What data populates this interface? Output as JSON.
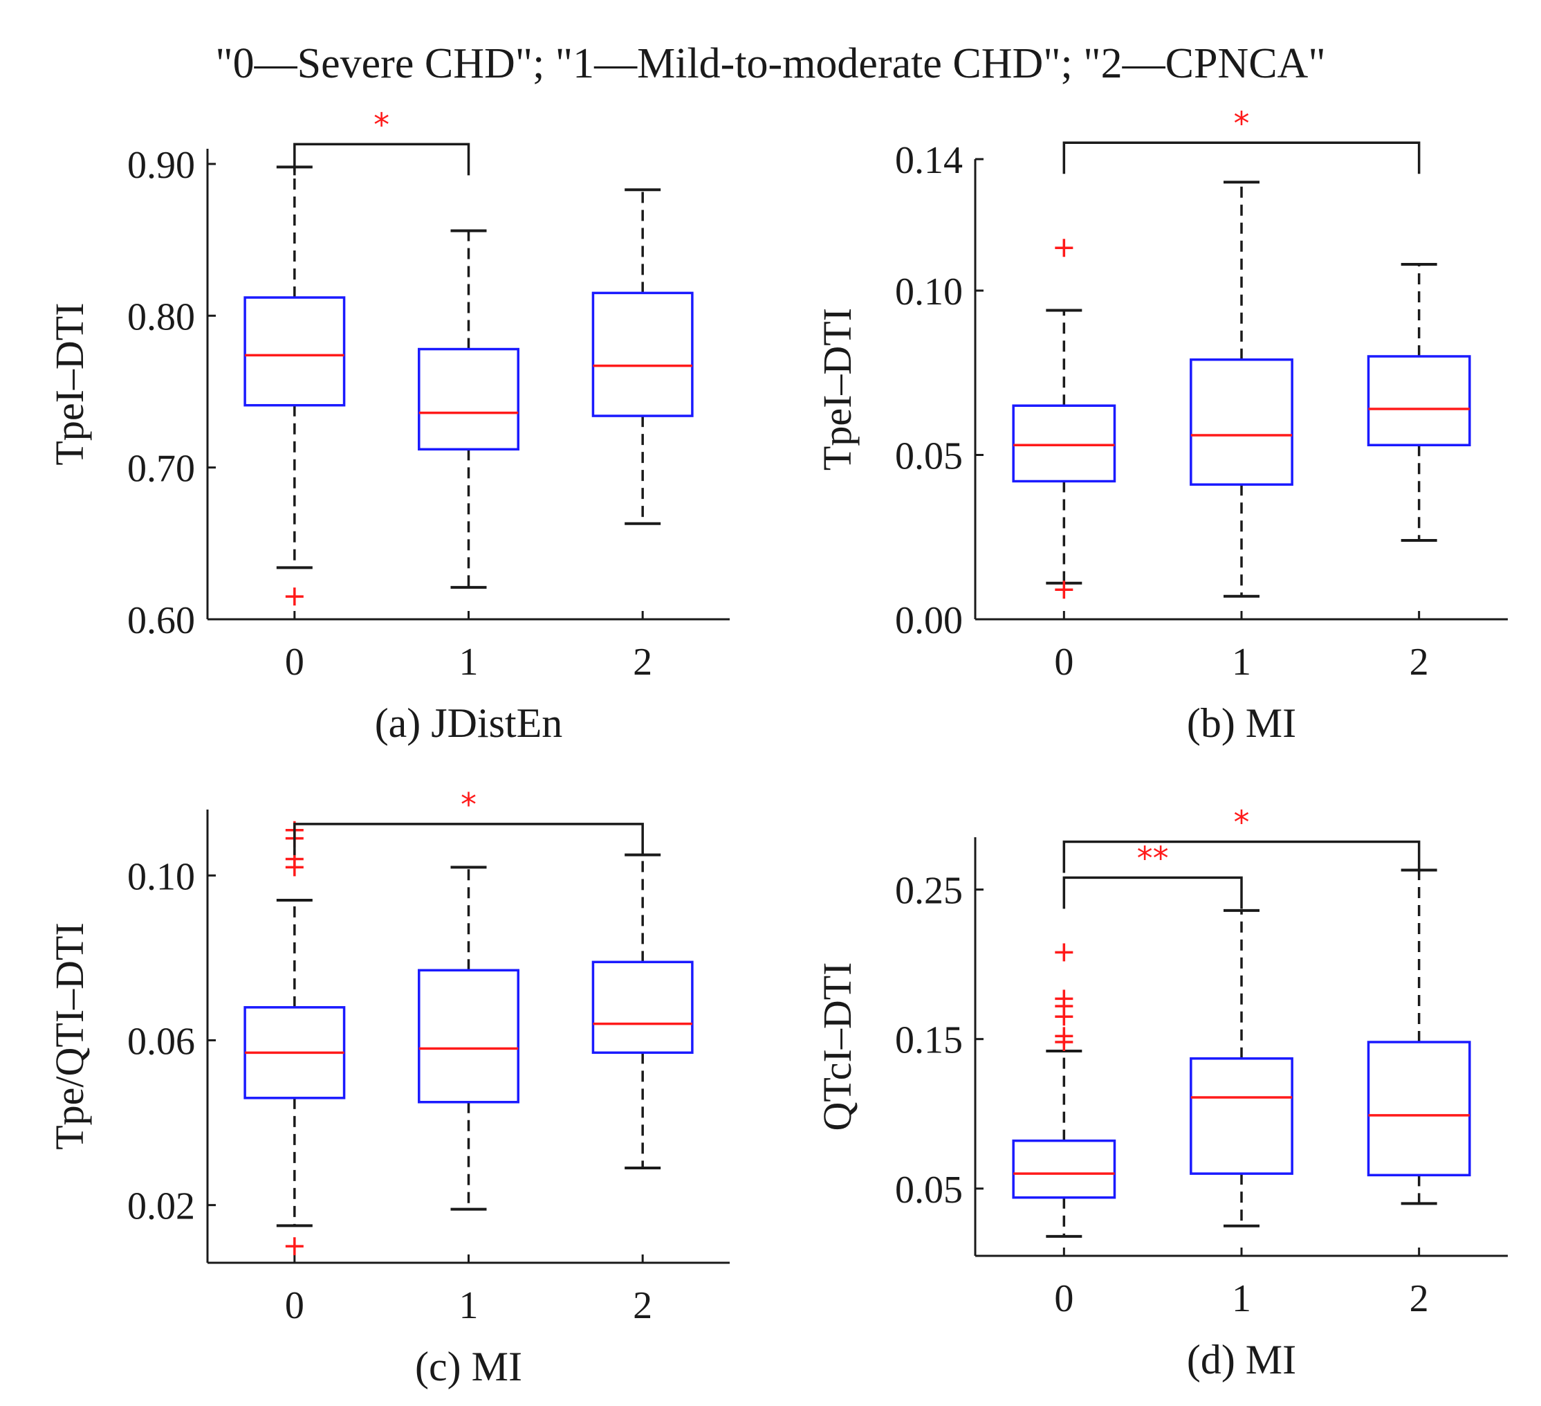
{
  "figure_title": "\"0—Severe CHD\"; \"1—Mild-to-moderate CHD\"; \"2—CPNCA\"",
  "colors": {
    "box": "#1a1aff",
    "median": "#ff1a1a",
    "outlier": "#ff1a1a",
    "whisker": "#1a1a1a",
    "axis": "#1a1a1a",
    "significance": "#ff1a1a"
  },
  "chart_data": [
    {
      "type": "box",
      "panel_label": "(a) JDistEn",
      "ylabel": "TpeI–DTI",
      "ylim": [
        0.6,
        0.91
      ],
      "yticks": [
        0.6,
        0.7,
        0.8,
        0.9
      ],
      "ytick_labels": [
        "0.60",
        "0.70",
        "0.80",
        "0.90"
      ],
      "categories": [
        "0",
        "1",
        "2"
      ],
      "boxes": [
        {
          "category": "0",
          "whisker_low": 0.634,
          "q1": 0.741,
          "median": 0.774,
          "q3": 0.812,
          "whisker_high": 0.898,
          "outliers": [
            0.615
          ]
        },
        {
          "category": "1",
          "whisker_low": 0.621,
          "q1": 0.712,
          "median": 0.736,
          "q3": 0.778,
          "whisker_high": 0.856,
          "outliers": []
        },
        {
          "category": "2",
          "whisker_low": 0.663,
          "q1": 0.734,
          "median": 0.767,
          "q3": 0.815,
          "whisker_high": 0.883,
          "outliers": []
        }
      ],
      "significance": [
        {
          "from": "0",
          "to": "1",
          "label": "*",
          "level": 0.913
        }
      ]
    },
    {
      "type": "box",
      "panel_label": "(b) MI",
      "ylabel": "TpeI–DTI",
      "ylim": [
        0.0,
        0.14
      ],
      "yticks": [
        0.0,
        0.05,
        0.1,
        0.14
      ],
      "ytick_labels": [
        "0.00",
        "0.05",
        "0.10",
        "0.14"
      ],
      "categories": [
        "0",
        "1",
        "2"
      ],
      "boxes": [
        {
          "category": "0",
          "whisker_low": 0.011,
          "q1": 0.042,
          "median": 0.053,
          "q3": 0.065,
          "whisker_high": 0.094,
          "outliers": [
            0.009,
            0.113
          ]
        },
        {
          "category": "1",
          "whisker_low": 0.007,
          "q1": 0.041,
          "median": 0.056,
          "q3": 0.079,
          "whisker_high": 0.133,
          "outliers": []
        },
        {
          "category": "2",
          "whisker_low": 0.024,
          "q1": 0.053,
          "median": 0.064,
          "q3": 0.08,
          "whisker_high": 0.108,
          "outliers": []
        }
      ],
      "significance": [
        {
          "from": "0",
          "to": "2",
          "label": "*",
          "level": 0.145
        }
      ]
    },
    {
      "type": "box",
      "panel_label": "(c) MI",
      "ylabel": "Tpe/QTI–DTI",
      "ylim": [
        0.006,
        0.116
      ],
      "yticks": [
        0.02,
        0.06,
        0.1
      ],
      "ytick_labels": [
        "0.02",
        "0.06",
        "0.10"
      ],
      "categories": [
        "0",
        "1",
        "2"
      ],
      "boxes": [
        {
          "category": "0",
          "whisker_low": 0.015,
          "q1": 0.046,
          "median": 0.057,
          "q3": 0.068,
          "whisker_high": 0.094,
          "outliers": [
            0.01,
            0.102,
            0.104,
            0.109,
            0.111
          ]
        },
        {
          "category": "1",
          "whisker_low": 0.019,
          "q1": 0.045,
          "median": 0.058,
          "q3": 0.077,
          "whisker_high": 0.102,
          "outliers": []
        },
        {
          "category": "2",
          "whisker_low": 0.029,
          "q1": 0.057,
          "median": 0.064,
          "q3": 0.079,
          "whisker_high": 0.105,
          "outliers": []
        }
      ],
      "significance": [
        {
          "from": "0",
          "to": "2",
          "label": "*",
          "level": 0.1125
        }
      ]
    },
    {
      "type": "box",
      "panel_label": "(d) MI",
      "ylabel": "QTcI–DTI",
      "ylim": [
        0.005,
        0.285
      ],
      "yticks": [
        0.05,
        0.15,
        0.25
      ],
      "ytick_labels": [
        "0.05",
        "0.15",
        "0.25"
      ],
      "categories": [
        "0",
        "1",
        "2"
      ],
      "boxes": [
        {
          "category": "0",
          "whisker_low": 0.018,
          "q1": 0.044,
          "median": 0.06,
          "q3": 0.082,
          "whisker_high": 0.142,
          "outliers": [
            0.148,
            0.152,
            0.165,
            0.172,
            0.177,
            0.208
          ]
        },
        {
          "category": "1",
          "whisker_low": 0.025,
          "q1": 0.06,
          "median": 0.111,
          "q3": 0.137,
          "whisker_high": 0.236,
          "outliers": []
        },
        {
          "category": "2",
          "whisker_low": 0.04,
          "q1": 0.059,
          "median": 0.099,
          "q3": 0.148,
          "whisker_high": 0.263,
          "outliers": []
        }
      ],
      "significance": [
        {
          "from": "0",
          "to": "1",
          "label": "**",
          "level": 0.258
        },
        {
          "from": "0",
          "to": "2",
          "label": "*",
          "level": 0.282
        }
      ]
    }
  ]
}
